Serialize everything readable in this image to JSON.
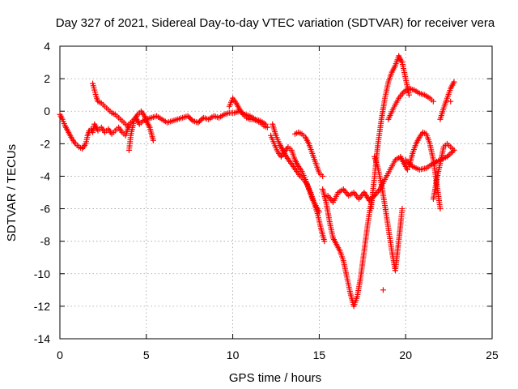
{
  "chart_data": {
    "type": "scatter",
    "title": "Day 327 of 2021, Sidereal Day-to-day VTEC variation (SDTVAR) for receiver vera",
    "xlabel": "GPS time / hours",
    "ylabel": "SDTVAR / TECUs",
    "xlim": [
      0,
      25
    ],
    "ylim": [
      -14,
      4
    ],
    "xticks": [
      "0",
      "5",
      "10",
      "15",
      "20",
      "25"
    ],
    "yticks": [
      "-14",
      "-12",
      "-10",
      "-8",
      "-6",
      "-4",
      "-2",
      "0",
      "2",
      "4"
    ],
    "grid": true,
    "marker": "+",
    "color": "#ff0000",
    "series": [
      {
        "x": [
          0.0,
          0.15,
          0.3,
          0.5,
          0.7,
          0.9,
          1.1,
          1.3,
          1.5,
          1.6,
          1.7,
          1.8,
          1.9,
          2.0,
          2.2,
          2.4,
          2.6,
          2.8,
          3.0,
          3.2,
          3.4,
          3.6,
          3.8,
          4.0,
          4.2,
          4.4,
          4.6,
          4.8,
          5.0,
          5.3,
          5.6,
          5.9,
          6.2,
          6.5,
          6.8,
          7.1,
          7.4,
          7.7,
          8.0,
          8.3,
          8.6,
          8.9,
          9.2,
          9.5,
          9.8,
          10.1,
          10.4,
          10.7,
          11.0,
          11.3,
          11.6,
          11.9
        ],
        "y": [
          -0.2,
          -0.5,
          -0.9,
          -1.3,
          -1.7,
          -2.0,
          -2.2,
          -2.3,
          -2.0,
          -1.5,
          -1.2,
          -1.1,
          -1.3,
          -0.8,
          -1.2,
          -1.0,
          -1.3,
          -1.1,
          -1.4,
          -1.2,
          -1.0,
          -1.3,
          -1.5,
          -0.8,
          -0.6,
          -0.4,
          -0.8,
          -0.6,
          -0.5,
          -0.4,
          -0.3,
          -0.5,
          -0.7,
          -0.6,
          -0.5,
          -0.4,
          -0.3,
          -0.6,
          -0.7,
          -0.4,
          -0.5,
          -0.3,
          -0.4,
          -0.2,
          -0.1,
          -0.1,
          0.0,
          -0.2,
          -0.3,
          -0.5,
          -0.6,
          -0.8
        ]
      },
      {
        "x": [
          1.9,
          2.0,
          2.1,
          2.2,
          2.4,
          2.6,
          2.8,
          3.0,
          3.2,
          3.4,
          3.6,
          3.8,
          4.0
        ],
        "y": [
          1.7,
          1.3,
          0.9,
          0.6,
          0.5,
          0.3,
          0.1,
          -0.1,
          -0.2,
          -0.4,
          -0.6,
          -0.8,
          -1.0
        ]
      },
      {
        "x": [
          4.0,
          4.05,
          4.1,
          4.2,
          4.3,
          4.5,
          4.7,
          4.9,
          5.0,
          5.2,
          5.4
        ],
        "y": [
          -2.4,
          -2.0,
          -1.5,
          -1.0,
          -0.5,
          -0.2,
          0.0,
          -0.3,
          -0.6,
          -1.0,
          -1.8
        ]
      },
      {
        "x": [
          9.8,
          10.0,
          10.2,
          10.4,
          10.6,
          10.8,
          11.0,
          11.2,
          11.4,
          11.6,
          11.8,
          12.0
        ],
        "y": [
          0.3,
          0.8,
          0.5,
          0.1,
          -0.2,
          -0.4,
          -0.5,
          -0.5,
          -0.6,
          -0.7,
          -0.9,
          -1.0
        ]
      },
      {
        "x": [
          12.2,
          12.4,
          12.6,
          12.8,
          13.0,
          13.2,
          13.4,
          13.6,
          13.8,
          14.0,
          14.2,
          14.4,
          14.6,
          14.8,
          15.0
        ],
        "y": [
          -1.5,
          -2.0,
          -2.5,
          -2.8,
          -2.5,
          -2.2,
          -2.4,
          -3.0,
          -3.4,
          -3.7,
          -4.2,
          -4.8,
          -5.4,
          -5.8,
          -6.2
        ]
      },
      {
        "x": [
          12.3,
          12.5,
          12.7,
          12.9,
          13.1,
          13.3,
          13.5,
          13.7,
          13.9,
          14.1,
          14.3,
          14.5,
          14.7,
          14.9,
          15.1,
          15.3
        ],
        "y": [
          -0.8,
          -1.5,
          -2.0,
          -2.4,
          -2.8,
          -3.1,
          -3.4,
          -3.7,
          -4.0,
          -4.2,
          -4.5,
          -5.0,
          -5.6,
          -6.3,
          -7.2,
          -8.0
        ]
      },
      {
        "x": [
          13.6,
          13.8,
          14.0,
          14.2,
          14.4,
          14.6,
          14.8,
          15.0,
          15.2
        ],
        "y": [
          -1.4,
          -1.3,
          -1.4,
          -1.6,
          -2.0,
          -2.6,
          -3.2,
          -3.8,
          -4.0
        ]
      },
      {
        "x": [
          15.2,
          15.4,
          15.6,
          15.8,
          16.0,
          16.2,
          16.4,
          16.6,
          16.8,
          17.0,
          17.2,
          17.4,
          17.6,
          17.8,
          18.0
        ],
        "y": [
          -4.8,
          -5.6,
          -6.8,
          -7.8,
          -8.2,
          -8.6,
          -9.2,
          -10.2,
          -11.2,
          -12.0,
          -11.4,
          -10.2,
          -8.6,
          -7.0,
          -5.6
        ]
      },
      {
        "x": [
          15.5,
          15.8,
          16.1,
          16.4,
          16.7,
          17.0,
          17.3,
          17.6,
          17.9,
          18.2,
          18.5,
          18.8,
          19.1,
          19.4,
          19.7,
          19.9,
          20.1
        ],
        "y": [
          -5.2,
          -5.6,
          -5.0,
          -4.8,
          -5.2,
          -5.0,
          -5.4,
          -5.0,
          -5.5,
          -5.2,
          -4.8,
          -4.2,
          -3.6,
          -3.0,
          -2.8,
          -3.2,
          -3.6
        ]
      },
      {
        "x": [
          18.0,
          18.2,
          18.4,
          18.6,
          18.8,
          19.0,
          19.2,
          19.4,
          19.6,
          19.8,
          20.0,
          20.2
        ],
        "y": [
          -6.0,
          -4.0,
          -2.0,
          -0.5,
          0.8,
          1.8,
          2.4,
          2.8,
          3.4,
          3.0,
          2.0,
          1.0
        ]
      },
      {
        "x": [
          18.2,
          18.4,
          18.6,
          18.8,
          19.0,
          19.2,
          19.4,
          19.6,
          19.8
        ],
        "y": [
          -2.8,
          -3.5,
          -4.5,
          -5.8,
          -7.2,
          -8.6,
          -9.8,
          -8.0,
          -6.0
        ]
      },
      {
        "x": [
          19.0,
          19.3,
          19.6,
          19.9,
          20.2,
          20.5,
          20.8,
          21.1,
          21.4,
          21.6
        ],
        "y": [
          -0.5,
          0.2,
          0.8,
          1.2,
          1.4,
          1.3,
          1.1,
          1.0,
          0.8,
          0.6
        ]
      },
      {
        "x": [
          20.2,
          20.4,
          20.6,
          20.8,
          21.0,
          21.2,
          21.4,
          21.6,
          21.8,
          22.0
        ],
        "y": [
          -3.4,
          -2.6,
          -2.0,
          -1.6,
          -1.3,
          -1.4,
          -2.0,
          -3.0,
          -4.5,
          -6.0
        ]
      },
      {
        "x": [
          20.0,
          20.4,
          20.8,
          21.2,
          21.6,
          22.0,
          22.4,
          22.8
        ],
        "y": [
          -3.0,
          -3.4,
          -3.6,
          -3.5,
          -3.2,
          -3.0,
          -2.8,
          -2.4
        ]
      },
      {
        "x": [
          22.0,
          22.2,
          22.4,
          22.6,
          22.8
        ],
        "y": [
          -0.5,
          0.2,
          0.8,
          1.4,
          1.8
        ]
      },
      {
        "x": [
          21.6,
          21.8,
          22.0,
          22.2,
          22.4,
          22.6,
          22.8
        ],
        "y": [
          -5.4,
          -4.2,
          -3.2,
          -2.2,
          -2.0,
          -2.2,
          -2.4
        ]
      },
      {
        "x": [
          18.7,
          22.6
        ],
        "y": [
          -11.0,
          0.6
        ]
      }
    ]
  }
}
